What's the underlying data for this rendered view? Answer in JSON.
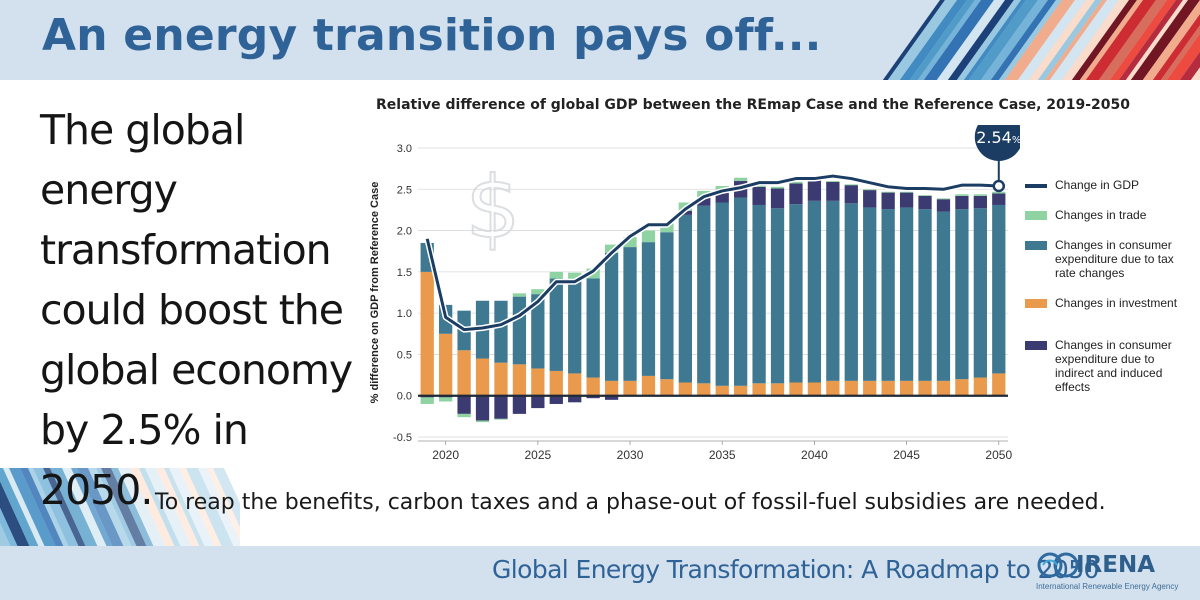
{
  "header": {
    "title": "An energy transition pays off..."
  },
  "lead": {
    "text": "The global energy transformation could boost the global economy by 2.5% in 2050."
  },
  "note": {
    "text": "To reap the benefits, carbon taxes and a phase-out of fossil-fuel subsidies are needed."
  },
  "footer": {
    "report_title": "Global Energy Transformation: A Roadmap to 2050"
  },
  "logo": {
    "name": "IRENA",
    "subtitle": "International Renewable Energy Agency"
  },
  "colors": {
    "gdp": "#1b3d63",
    "trade": "#8fd3a3",
    "tax": "#3f7891",
    "investment": "#ea9a4c",
    "indirect": "#3b3b72",
    "brand": "#2f6296"
  },
  "chart_data": {
    "type": "bar",
    "title": "Relative difference of global GDP between the REmap Case and the Reference Case, 2019-2050",
    "xlabel": "",
    "ylabel": "% difference on GDP from Reference Case",
    "ylim": [
      -0.5,
      3.0
    ],
    "yticks": [
      "3.0",
      "2.5",
      "2.0",
      "1.5",
      "1.0",
      "0.5",
      "0.0",
      "-0.5"
    ],
    "xticks": [
      "2020",
      "2025",
      "2030",
      "2035",
      "2040",
      "2045",
      "2050"
    ],
    "stacking": "stacked",
    "categories": [
      2019,
      2020,
      2021,
      2022,
      2023,
      2024,
      2025,
      2026,
      2027,
      2028,
      2029,
      2030,
      2031,
      2032,
      2033,
      2034,
      2035,
      2036,
      2037,
      2038,
      2039,
      2040,
      2041,
      2042,
      2043,
      2044,
      2045,
      2046,
      2047,
      2048,
      2049,
      2050
    ],
    "series": [
      {
        "name": "Changes in investment",
        "key": "investment",
        "values": [
          1.5,
          0.75,
          0.55,
          0.45,
          0.4,
          0.38,
          0.33,
          0.3,
          0.27,
          0.22,
          0.18,
          0.18,
          0.24,
          0.2,
          0.16,
          0.15,
          0.12,
          0.12,
          0.15,
          0.15,
          0.16,
          0.16,
          0.18,
          0.18,
          0.18,
          0.18,
          0.18,
          0.18,
          0.18,
          0.2,
          0.22,
          0.27
        ]
      },
      {
        "name": "Changes in consumer expenditure due to tax rate changes",
        "key": "tax",
        "values": [
          0.35,
          0.35,
          0.48,
          0.7,
          0.75,
          0.82,
          0.9,
          1.12,
          1.12,
          1.2,
          1.55,
          1.62,
          1.62,
          1.78,
          2.03,
          2.15,
          2.22,
          2.28,
          2.16,
          2.12,
          2.16,
          2.2,
          2.18,
          2.15,
          2.1,
          2.08,
          2.1,
          2.08,
          2.05,
          2.06,
          2.05,
          2.04
        ]
      },
      {
        "name": "Changes in consumer expenditure due to indirect and induced effects",
        "key": "indirect",
        "values": [
          -0.02,
          -0.02,
          -0.22,
          -0.3,
          -0.28,
          -0.22,
          -0.15,
          -0.1,
          -0.08,
          -0.03,
          -0.05,
          0.0,
          0.0,
          0.0,
          0.05,
          0.1,
          0.15,
          0.2,
          0.22,
          0.24,
          0.25,
          0.25,
          0.23,
          0.22,
          0.21,
          0.2,
          0.18,
          0.16,
          0.15,
          0.16,
          0.15,
          0.14
        ]
      },
      {
        "name": "Changes in trade",
        "key": "trade",
        "values": [
          -0.08,
          -0.05,
          -0.04,
          -0.02,
          -0.01,
          0.04,
          0.06,
          0.08,
          0.1,
          0.12,
          0.1,
          0.12,
          0.14,
          0.11,
          0.1,
          0.08,
          0.05,
          0.04,
          0.03,
          0.02,
          0.02,
          0.02,
          0.01,
          0.01,
          0.01,
          0.01,
          0.01,
          0.01,
          0.01,
          0.02,
          0.02,
          0.02
        ]
      }
    ],
    "line": {
      "name": "Change in GDP",
      "key": "gdp",
      "values": [
        1.9,
        0.95,
        0.8,
        0.82,
        0.86,
        0.97,
        1.14,
        1.38,
        1.38,
        1.51,
        1.73,
        1.93,
        2.07,
        2.07,
        2.26,
        2.41,
        2.48,
        2.52,
        2.58,
        2.58,
        2.63,
        2.63,
        2.66,
        2.63,
        2.58,
        2.53,
        2.51,
        2.51,
        2.5,
        2.55,
        2.55,
        2.54
      ]
    },
    "annotation": {
      "text": "2.54%",
      "value_label": "2.54",
      "unit": "%",
      "year": 2050,
      "value": 2.54
    },
    "legend": [
      {
        "key": "gdp",
        "label": "Change in GDP",
        "kind": "line"
      },
      {
        "key": "trade",
        "label": "Changes in trade",
        "kind": "bar"
      },
      {
        "key": "tax",
        "label": "Changes in consumer expenditure due to tax rate changes",
        "kind": "bar"
      },
      {
        "key": "investment",
        "label": "Changes in investment",
        "kind": "bar"
      },
      {
        "key": "indirect",
        "label": "Changes in consumer expenditure due to indirect and induced effects",
        "kind": "bar"
      }
    ],
    "legend_position": "right"
  }
}
